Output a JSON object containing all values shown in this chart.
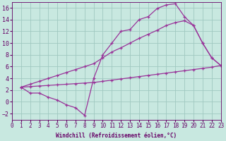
{
  "xlabel": "Windchill (Refroidissement éolien,°C)",
  "background_color": "#c8e8e0",
  "grid_color": "#a0c8c0",
  "line_color": "#993399",
  "xlim": [
    0,
    23
  ],
  "ylim": [
    -3,
    17
  ],
  "xticks": [
    0,
    1,
    2,
    3,
    4,
    5,
    6,
    7,
    8,
    9,
    10,
    11,
    12,
    13,
    14,
    15,
    16,
    17,
    18,
    19,
    20,
    21,
    22,
    23
  ],
  "yticks": [
    -2,
    0,
    2,
    4,
    6,
    8,
    10,
    12,
    14,
    16
  ],
  "line1_x": [
    1,
    2,
    3,
    4,
    5,
    6,
    7,
    8,
    9,
    10,
    11,
    12,
    13,
    14,
    15,
    16,
    17,
    18,
    19,
    20,
    21,
    22,
    23
  ],
  "line1_y": [
    2.5,
    1.5,
    1.5,
    0.8,
    0.3,
    -0.5,
    -1.0,
    -2.3,
    4.0,
    8.0,
    10.0,
    12.0,
    12.3,
    14.0,
    14.5,
    15.9,
    16.5,
    16.7,
    14.5,
    13.0,
    10.0,
    7.5,
    6.2
  ],
  "line2_x": [
    1,
    2,
    3,
    4,
    5,
    6,
    7,
    8,
    9,
    10,
    11,
    12,
    13,
    14,
    15,
    16,
    17,
    18,
    19,
    20,
    21,
    22,
    23
  ],
  "line2_y": [
    2.5,
    2.6,
    2.7,
    2.8,
    2.9,
    3.0,
    3.1,
    3.2,
    3.3,
    3.5,
    3.7,
    3.9,
    4.1,
    4.3,
    4.5,
    4.7,
    4.9,
    5.1,
    5.3,
    5.5,
    5.7,
    5.9,
    6.2
  ],
  "line3_x": [
    1,
    2,
    3,
    4,
    5,
    6,
    7,
    8,
    9,
    10,
    11,
    12,
    13,
    14,
    15,
    16,
    17,
    18,
    19,
    20,
    21,
    22,
    23
  ],
  "line3_y": [
    2.5,
    3.0,
    3.5,
    4.0,
    4.5,
    5.0,
    5.5,
    6.0,
    6.5,
    7.5,
    8.5,
    9.2,
    10.0,
    10.8,
    11.5,
    12.2,
    13.0,
    13.5,
    13.8,
    13.0,
    10.0,
    7.5,
    6.2
  ],
  "label_color": "#660066",
  "tick_fontsize": 5.5,
  "xlabel_fontsize": 5.5
}
